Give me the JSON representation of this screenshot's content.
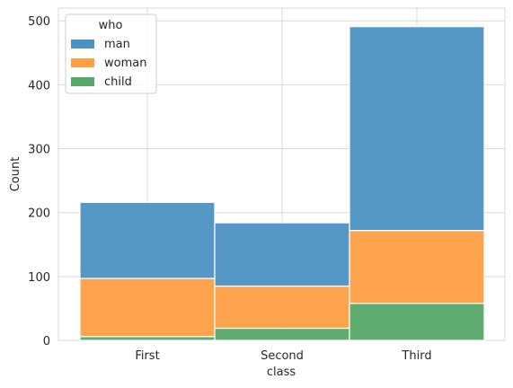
{
  "chart_data": {
    "type": "bar",
    "stacked": true,
    "categories": [
      "First",
      "Second",
      "Third"
    ],
    "series": [
      {
        "name": "child",
        "values": [
          6,
          19,
          58
        ],
        "color": "#55a868"
      },
      {
        "name": "woman",
        "values": [
          91,
          66,
          114
        ],
        "color": "#ff9f45"
      },
      {
        "name": "man",
        "values": [
          119,
          99,
          319
        ],
        "color": "#4c92c3"
      }
    ],
    "legend_order": [
      "man",
      "woman",
      "child"
    ],
    "legend_title": "who",
    "legend_placement": "top-left",
    "xlabel": "class",
    "ylabel": "Count",
    "ylim": [
      0,
      520
    ],
    "yticks": [
      0,
      100,
      200,
      300,
      400,
      500
    ],
    "grid": true
  }
}
